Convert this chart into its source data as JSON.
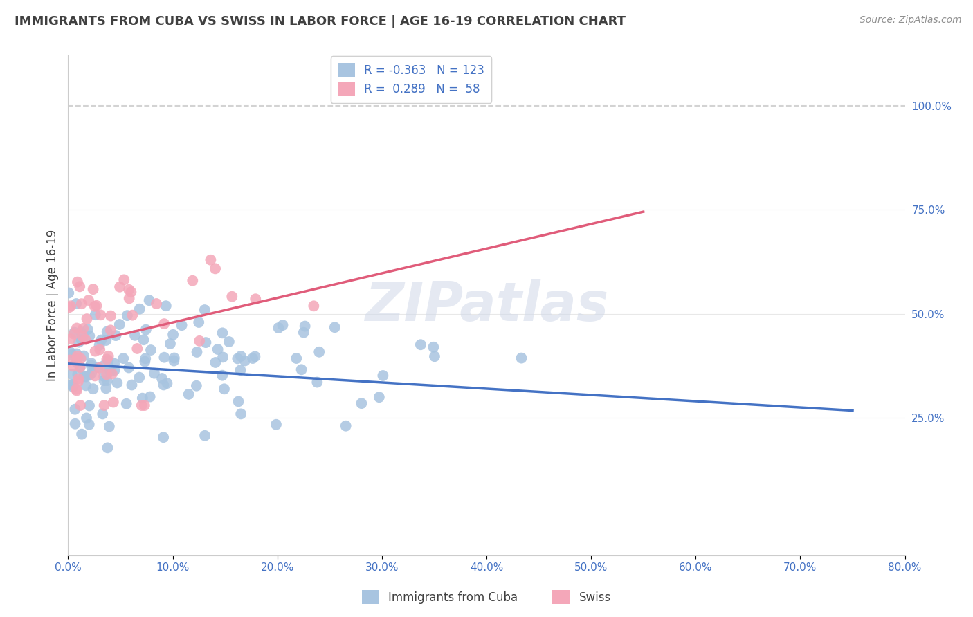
{
  "title": "IMMIGRANTS FROM CUBA VS SWISS IN LABOR FORCE | AGE 16-19 CORRELATION CHART",
  "source": "Source: ZipAtlas.com",
  "ylabel": "In Labor Force | Age 16-19",
  "x_tick_labels": [
    "0.0%",
    "10.0%",
    "20.0%",
    "30.0%",
    "40.0%",
    "50.0%",
    "60.0%",
    "70.0%",
    "80.0%"
  ],
  "x_tick_vals": [
    0.0,
    10.0,
    20.0,
    30.0,
    40.0,
    50.0,
    60.0,
    70.0,
    80.0
  ],
  "y_tick_labels_right": [
    "100.0%",
    "75.0%",
    "50.0%",
    "25.0%"
  ],
  "y_tick_vals_right": [
    100.0,
    75.0,
    50.0,
    25.0
  ],
  "xlim": [
    0.0,
    80.0
  ],
  "ylim": [
    -8.0,
    112.0
  ],
  "cuba_R": -0.363,
  "cuba_N": 123,
  "swiss_R": 0.289,
  "swiss_N": 58,
  "cuba_color": "#a8c4e0",
  "swiss_color": "#f4a7b9",
  "cuba_line_color": "#4472c4",
  "swiss_line_color": "#e05c7a",
  "dashed_line_color": "#c8c8c8",
  "watermark_color": "#d0d8e8",
  "background_color": "#ffffff",
  "title_color": "#404040",
  "axis_label_color": "#4472c4",
  "grid_color": "#e8e8e8",
  "watermark_text": "ZIPatlas",
  "cuba_line_x": [
    0.0,
    75.0
  ],
  "cuba_line_y": [
    38.0,
    26.75
  ],
  "swiss_line_x": [
    0.0,
    55.0
  ],
  "swiss_line_y": [
    42.0,
    74.5
  ]
}
